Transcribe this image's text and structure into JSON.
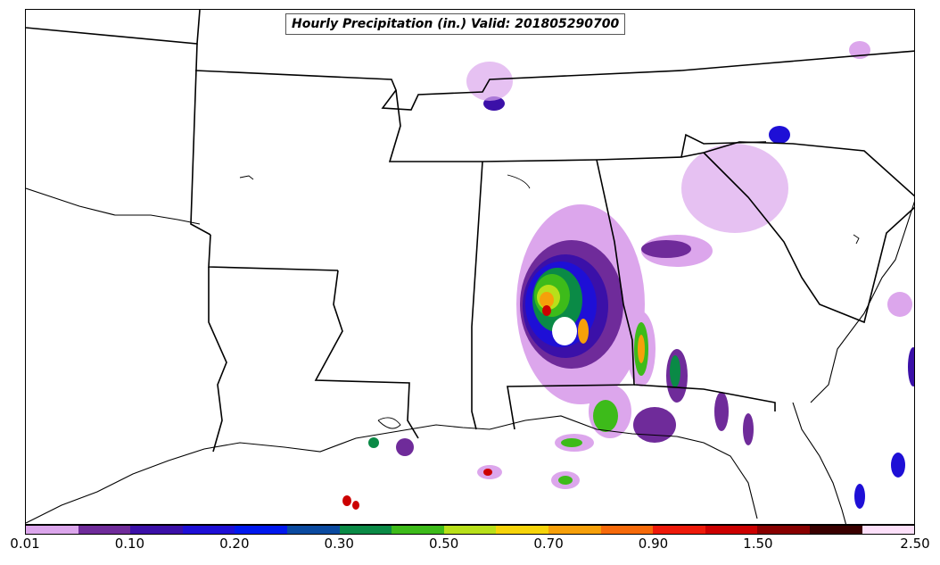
{
  "title": "Hourly Precipitation (in.) Valid: 201805290700",
  "legend": {
    "ticks": [
      "0.01",
      "0.10",
      "0.20",
      "0.30",
      "0.50",
      "0.70",
      "0.90",
      "1.50",
      "2.50"
    ],
    "colors": [
      "#dca6ec",
      "#6f2b9a",
      "#3b10a8",
      "#1e0fd6",
      "#0018ee",
      "#0a4aa0",
      "#0a8a46",
      "#3dbb1a",
      "#b8e01a",
      "#f6d40a",
      "#f6a00a",
      "#f66a0a",
      "#ee1a0a",
      "#cc0000",
      "#880000",
      "#3a0000",
      "#fde0fa"
    ]
  },
  "map": {
    "land_color": "#ffffff",
    "boundary_color": "#000000"
  }
}
